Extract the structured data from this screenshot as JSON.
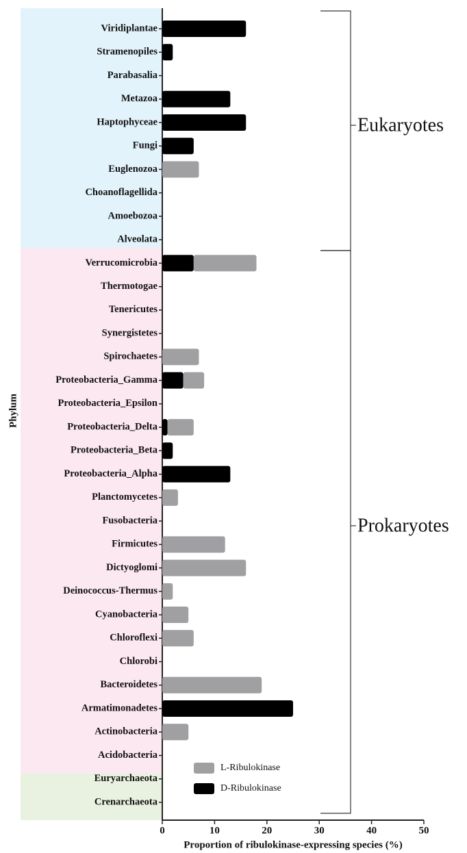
{
  "chart_data": {
    "type": "stacked-barh",
    "x_label": "Proportion of ribulokinase-expressing species (%)",
    "y_label": "Phylum",
    "annotations": [
      "Eukaryotes",
      "Prokaryotes"
    ],
    "categories": [
      "Viridiplantae",
      "Stramenopiles",
      "Parabasalia",
      "Metazoa",
      "Haptophyceae",
      "Fungi",
      "Euglenozoa",
      "Choanoflagellida",
      "Amoebozoa",
      "Alveolata",
      "Verrucomicrobia",
      "Thermotogae",
      "Tenericutes",
      "Synergistetes",
      "Spirochaetes",
      "Proteobacteria_Gamma",
      "Proteobacteria_Epsilon",
      "Proteobacteria_Delta",
      "Proteobacteria_Beta",
      "Proteobacteria_Alpha",
      "Planctomycetes",
      "Fusobacteria",
      "Firmicutes",
      "Dictyoglomi",
      "Deinococcus-Thermus",
      "Cyanobacteria",
      "Chloroflexi",
      "Chlorobi",
      "Bacteroidetes",
      "Armatimonadetes",
      "Actinobacteria",
      "Acidobacteria",
      "Euryarchaeota",
      "Crenarchaeota"
    ],
    "series": [
      {
        "name": "L-Ribulokinase",
        "color": "#a0a0a3",
        "values": [
          0,
          0,
          0,
          0,
          0,
          0,
          7,
          0,
          0,
          0,
          12,
          0,
          0,
          0,
          7,
          4,
          0,
          5,
          0,
          0,
          3,
          0,
          12,
          16,
          2,
          5,
          6,
          0,
          19,
          0,
          5,
          0,
          0,
          0
        ]
      },
      {
        "name": "D-Ribulokinase",
        "color": "#000000",
        "values": [
          16,
          2,
          0,
          13,
          16,
          6,
          0,
          0,
          0,
          0,
          6,
          0,
          0,
          0,
          0,
          4,
          0,
          1,
          2,
          13,
          0,
          0,
          0,
          0,
          0,
          0,
          0,
          0,
          0,
          25,
          0,
          0,
          0,
          0
        ]
      }
    ],
    "xlim": [
      0,
      50
    ],
    "xticks": [
      0,
      10,
      20,
      30,
      40,
      50
    ],
    "grid": false
  }
}
